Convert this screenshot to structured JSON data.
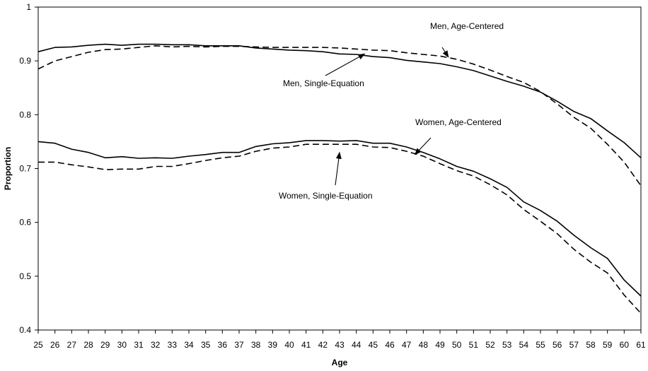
{
  "chart_data": {
    "type": "line",
    "xlabel": "Age",
    "ylabel": "Proportion",
    "xlim": [
      25,
      61
    ],
    "ylim": [
      0.4,
      1.0
    ],
    "y_ticks": [
      0.4,
      0.5,
      0.6,
      0.7,
      0.8,
      0.9,
      1.0
    ],
    "y_tick_labels": [
      "0.4",
      "0.5",
      "0.6",
      "0.7",
      "0.8",
      "0.9",
      "1"
    ],
    "x": [
      25,
      26,
      27,
      28,
      29,
      30,
      31,
      32,
      33,
      34,
      35,
      36,
      37,
      38,
      39,
      40,
      41,
      42,
      43,
      44,
      45,
      46,
      47,
      48,
      49,
      50,
      51,
      52,
      53,
      54,
      55,
      56,
      57,
      58,
      59,
      60,
      61
    ],
    "grid": false,
    "legend": "none",
    "series": [
      {
        "name": "Men, Age-Centered",
        "style": "dashed",
        "color": "#000000",
        "values": [
          0.885,
          0.9,
          0.908,
          0.916,
          0.921,
          0.922,
          0.925,
          0.928,
          0.926,
          0.927,
          0.926,
          0.927,
          0.927,
          0.926,
          0.925,
          0.925,
          0.925,
          0.925,
          0.924,
          0.922,
          0.92,
          0.919,
          0.915,
          0.912,
          0.909,
          0.903,
          0.894,
          0.883,
          0.871,
          0.86,
          0.843,
          0.82,
          0.795,
          0.775,
          0.745,
          0.712,
          0.668
        ]
      },
      {
        "name": "Men, Single-Equation",
        "style": "solid",
        "color": "#000000",
        "values": [
          0.917,
          0.925,
          0.926,
          0.929,
          0.931,
          0.929,
          0.931,
          0.931,
          0.93,
          0.93,
          0.928,
          0.928,
          0.928,
          0.924,
          0.922,
          0.92,
          0.919,
          0.917,
          0.913,
          0.912,
          0.908,
          0.906,
          0.901,
          0.898,
          0.895,
          0.889,
          0.882,
          0.872,
          0.862,
          0.853,
          0.842,
          0.825,
          0.806,
          0.793,
          0.77,
          0.748,
          0.72
        ]
      },
      {
        "name": "Women, Age-Centered",
        "style": "solid",
        "color": "#000000",
        "values": [
          0.75,
          0.747,
          0.736,
          0.73,
          0.72,
          0.722,
          0.719,
          0.72,
          0.719,
          0.723,
          0.726,
          0.73,
          0.73,
          0.741,
          0.746,
          0.748,
          0.752,
          0.752,
          0.751,
          0.752,
          0.747,
          0.747,
          0.74,
          0.73,
          0.718,
          0.704,
          0.695,
          0.681,
          0.665,
          0.638,
          0.622,
          0.602,
          0.576,
          0.553,
          0.533,
          0.493,
          0.463
        ]
      },
      {
        "name": "Women, Single-Equation",
        "style": "dashed",
        "color": "#000000",
        "values": [
          0.712,
          0.712,
          0.707,
          0.703,
          0.698,
          0.699,
          0.699,
          0.704,
          0.704,
          0.709,
          0.715,
          0.72,
          0.723,
          0.732,
          0.738,
          0.74,
          0.745,
          0.745,
          0.745,
          0.745,
          0.74,
          0.739,
          0.732,
          0.723,
          0.709,
          0.696,
          0.686,
          0.67,
          0.651,
          0.624,
          0.602,
          0.579,
          0.55,
          0.526,
          0.506,
          0.465,
          0.431
        ]
      }
    ],
    "annotations": [
      {
        "text": "Men, Age-Centered",
        "points_to": {
          "x": 49.5,
          "y": 0.907
        }
      },
      {
        "text": "Men, Single-Equation",
        "points_to": {
          "x": 44.5,
          "y": 0.913
        }
      },
      {
        "text": "Women, Age-Centered",
        "points_to": {
          "x": 47.5,
          "y": 0.726
        }
      },
      {
        "text": "Women, Single-Equation",
        "points_to": {
          "x": 43.0,
          "y": 0.73
        }
      }
    ]
  }
}
